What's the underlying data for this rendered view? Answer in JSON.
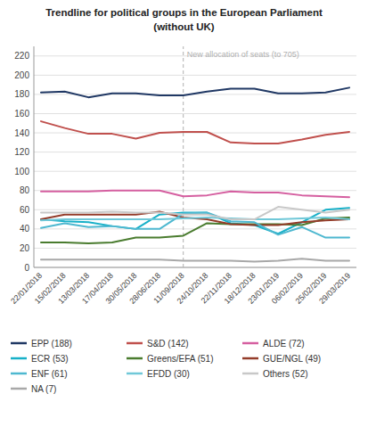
{
  "chart_data": {
    "type": "line",
    "title": "Trendline for political groups in the European Parliament",
    "subtitle": "(without UK)",
    "annotations": [
      {
        "text": "New allocation of seats (to 705)",
        "x": "11/09/2018",
        "color": "#b0b0b0"
      }
    ],
    "categories": [
      "22/01/2018",
      "15/02/2018",
      "13/03/2018",
      "17/04/2018",
      "30/05/2018",
      "28/06/2018",
      "11/09/2018",
      "24/10/2018",
      "22/11/2018",
      "18/12/2018",
      "23/01/2019",
      "06/02/2019",
      "25/02/2019",
      "29/03/2019"
    ],
    "series": [
      {
        "name": "EPP (188)",
        "color": "#203864",
        "values": [
          182,
          183,
          177,
          181,
          181,
          179,
          179,
          183,
          186,
          186,
          181,
          181,
          182,
          187
        ]
      },
      {
        "name": "S&D (142)",
        "color": "#c0504d",
        "values": [
          152,
          145,
          139,
          139,
          134,
          140,
          141,
          141,
          130,
          129,
          129,
          133,
          138,
          141
        ]
      },
      {
        "name": "ALDE (72)",
        "color": "#d55fa0",
        "values": [
          79,
          79,
          79,
          80,
          80,
          80,
          74,
          75,
          79,
          78,
          78,
          75,
          74,
          73
        ]
      },
      {
        "name": "ECR (53)",
        "color": "#17b0c8",
        "values": [
          50,
          48,
          47,
          43,
          40,
          55,
          57,
          57,
          46,
          44,
          35,
          47,
          60,
          62
        ]
      },
      {
        "name": "Greens/EFA (51)",
        "color": "#4a7c2f",
        "values": [
          26,
          26,
          25,
          26,
          31,
          31,
          33,
          46,
          45,
          45,
          45,
          44,
          51,
          52
        ]
      },
      {
        "name": "GUE/NGL (49)",
        "color": "#943c2a",
        "values": [
          50,
          55,
          55,
          55,
          55,
          58,
          52,
          50,
          45,
          44,
          44,
          47,
          49,
          50
        ]
      },
      {
        "name": "ENF (61)",
        "color": "#4eb8d0",
        "values": [
          41,
          46,
          42,
          43,
          40,
          40,
          56,
          57,
          48,
          47,
          34,
          42,
          31,
          31
        ]
      },
      {
        "name": "EFDD (30)",
        "color": "#70c8d8",
        "values": [
          49,
          50,
          50,
          50,
          50,
          50,
          51,
          52,
          51,
          50,
          50,
          51,
          52,
          50
        ]
      },
      {
        "name": "Others (52)",
        "color": "#c8c8c8",
        "values": [
          57,
          57,
          57,
          58,
          57,
          57,
          55,
          55,
          50,
          50,
          63,
          60,
          57,
          60
        ]
      },
      {
        "name": "NA (7)",
        "color": "#a8a8a8",
        "values": [
          8,
          8,
          8,
          8,
          8,
          8,
          7,
          7,
          7,
          6,
          7,
          9,
          7,
          7
        ]
      }
    ],
    "ylim": [
      0,
      230
    ],
    "yticks": [
      0,
      20,
      40,
      60,
      80,
      100,
      120,
      140,
      160,
      180,
      200,
      220
    ],
    "grid": true,
    "legend": "bottom"
  }
}
